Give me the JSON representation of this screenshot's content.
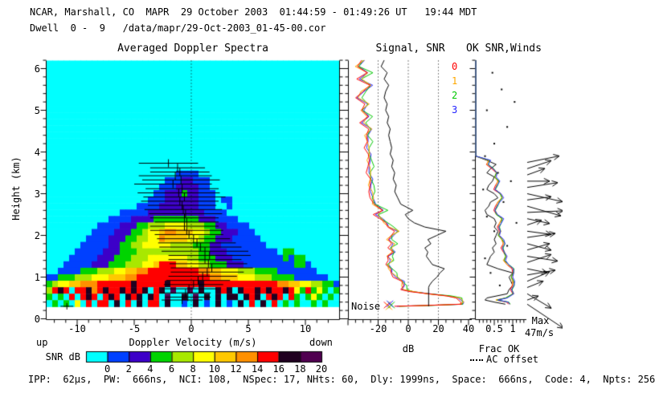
{
  "header": {
    "line1": "NCAR, Marshall, CO  MAPR  29 October 2003  01:44:59 - 01:49:26 UT   19:44 MDT",
    "line2": "Dwell  0 -  9   /data/mapr/29-Oct-2003_01-45-00.cor"
  },
  "footer": {
    "params": "IPP:  62µs,  PW:  666ns,  NCI: 108,  NSpec: 17, NHts: 60,  Dly: 1999ns,  Space:  666ns,  Code: 4,  Npts: 256"
  },
  "labels": {
    "height_axis": "Height (km)",
    "velocity_axis": "Doppler Velocity (m/s)",
    "up": "up",
    "down": "down",
    "snr_db": "SNR dB",
    "db": "dB",
    "frac_ok": "Frac OK",
    "ac_offset": "AC offset",
    "noise": "Noise",
    "max": "Max",
    "max_value": "47m/s"
  },
  "chart_data": [
    {
      "id": "spectra",
      "type": "heatmap",
      "title": "Averaged Doppler Spectra",
      "xlabel": "Doppler Velocity (m/s)",
      "ylabel": "Height (km)",
      "xlim": [
        -13,
        13
      ],
      "ylim": [
        0,
        6.2
      ],
      "x_ticks": [
        -10,
        -5,
        0,
        5,
        10
      ],
      "y_ticks": [
        0,
        1,
        2,
        3,
        4,
        5,
        6
      ],
      "x_left_note": "up",
      "x_right_note": "down",
      "zero_line_v": 0,
      "colorbar": {
        "label": "SNR dB",
        "tick_labels": [
          "0",
          "2",
          "4",
          "6",
          "8",
          "10",
          "12",
          "14",
          "16",
          "18",
          "20"
        ],
        "colors": [
          "#00ffff",
          "#0040ff",
          "#3c00c8",
          "#00d400",
          "#a8e800",
          "#ffff00",
          "#ffc800",
          "#ff9000",
          "#ff0000",
          "#200020",
          "#500050"
        ]
      },
      "grid": {
        "cols": 52,
        "rows": 40,
        "v_min": -13,
        "v_max": 13,
        "h_max": 6.2,
        "palette": {
          ".": "#00ffff",
          "1": "#0040ff",
          "2": "#3c00c8",
          "3": "#00d400",
          "4": "#a8e800",
          "5": "#ffff00",
          "6": "#ffc800",
          "7": "#ff9000",
          "8": "#ff0000",
          "9": "#200020",
          "a": "#500050"
        },
        "rows_data": [
          ".",
          ".",
          ".",
          ".",
          ".",
          ".",
          ".",
          ".",
          ".",
          ".",
          ".",
          ".",
          ".",
          ".",
          ".",
          ".",
          ".",
          ".......................1111",
          ".....................11122111",
          "....................111222211",
          "...................11222322111",
          "..................111222222111.11",
          "................11112222222111..1",
          ".............1111122222222221111",
          "...........11112222333333332221111",
          ".........111122233444555544433221111",
          "........11112223345567766655433222111",
          ".......1111222334455766665543322211111",
          "......111112233445555544443332211111111",
          ".....111112223334444444444433222111111111.33",
          "....111112223334445555555443332221111111113133",
          "...11111222333444556888665544333222111111111331",
          "..1111333444556677888888888776655544433331111111",
          "11333444555666778888888888888776665554443333111111",
          "3455667778888889888889888889888888888888877665544331",
          "4898.8897898898989.89.a..a.9..989.9889898898538353.3",
          "3.3.8.898.898.989.98.a..9.a.9.9.99.989.898.83.353.3.",
          ".3.3.5.8.88.9.8.9.88.9..1.9.1.9.1.9.8.9.8.3.3..3.3..",
          "",
          ""
        ]
      },
      "moment_lines": [
        [
          3.73,
          -2.0,
          2.6
        ],
        [
          3.62,
          -1.2,
          2.4
        ],
        [
          3.52,
          -1.0,
          2.6
        ],
        [
          3.43,
          -1.4,
          3.2
        ],
        [
          3.33,
          -0.9,
          3.4
        ],
        [
          3.23,
          -1.6,
          3.4
        ],
        [
          3.12,
          -0.8,
          3.2
        ],
        [
          3.02,
          -1.1,
          3.6
        ],
        [
          2.92,
          -0.6,
          3.6
        ],
        [
          2.82,
          -1.0,
          3.4
        ],
        [
          2.72,
          -0.8,
          3.0
        ],
        [
          2.62,
          -0.7,
          3.4
        ],
        [
          2.52,
          -0.5,
          3.2
        ],
        [
          2.42,
          -0.6,
          3.0
        ],
        [
          2.32,
          -0.4,
          2.8
        ],
        [
          2.22,
          -0.6,
          3.0
        ],
        [
          2.12,
          -0.4,
          3.2
        ],
        [
          2.02,
          -0.2,
          3.0
        ],
        [
          1.92,
          0.2,
          3.2
        ],
        [
          1.82,
          0.5,
          3.4
        ],
        [
          1.72,
          0.8,
          3.6
        ],
        [
          1.62,
          1.2,
          3.8
        ],
        [
          1.52,
          1.6,
          3.6
        ],
        [
          1.42,
          1.2,
          3.2
        ],
        [
          1.32,
          1.5,
          3.4
        ],
        [
          1.22,
          1.8,
          3.6
        ],
        [
          1.12,
          1.4,
          3.2
        ],
        [
          1.02,
          1.0,
          3.0
        ],
        [
          0.92,
          0.6,
          2.8
        ],
        [
          0.82,
          0.2,
          2.6
        ],
        [
          0.72,
          -0.2,
          2.4
        ],
        [
          0.62,
          -0.5,
          2.2
        ],
        [
          0.52,
          -0.3,
          2.0
        ],
        [
          0.45,
          -0.8,
          1.8
        ]
      ],
      "lone_cross": {
        "v": -10.9,
        "h": 0.3
      }
    },
    {
      "id": "signal_snr",
      "type": "line",
      "title": "Signal, SNR",
      "xlabel": "dB",
      "xlim": [
        -40,
        42
      ],
      "x_ticks": [
        -20,
        0,
        20,
        40
      ],
      "gridlines_db": [
        -20,
        0,
        20
      ],
      "legend": {
        "labels": [
          "0",
          "1",
          "2",
          "3"
        ],
        "colors": [
          "#ff0000",
          "#ffa800",
          "#00c800",
          "#2424ff"
        ]
      },
      "beam_offsets_db": [
        0,
        0.8,
        2.2,
        1.2
      ],
      "signal_profile": [
        [
          6.2,
          -16
        ],
        [
          6.05,
          -18
        ],
        [
          5.9,
          -14
        ],
        [
          5.75,
          -16
        ],
        [
          5.6,
          -13
        ],
        [
          5.45,
          -15
        ],
        [
          5.3,
          -16
        ],
        [
          5.15,
          -14
        ],
        [
          5.0,
          -15
        ],
        [
          4.85,
          -13
        ],
        [
          4.7,
          -14
        ],
        [
          4.55,
          -12
        ],
        [
          4.4,
          -13
        ],
        [
          4.25,
          -12
        ],
        [
          4.1,
          -11
        ],
        [
          3.95,
          -12
        ],
        [
          3.8,
          -10
        ],
        [
          3.65,
          -11
        ],
        [
          3.5,
          -9
        ],
        [
          3.35,
          -10
        ],
        [
          3.2,
          -8
        ],
        [
          3.05,
          -9
        ],
        [
          2.9,
          -7
        ],
        [
          2.75,
          -5
        ],
        [
          2.6,
          3
        ],
        [
          2.5,
          -2
        ],
        [
          2.4,
          0
        ],
        [
          2.3,
          4
        ],
        [
          2.2,
          11
        ],
        [
          2.1,
          25
        ],
        [
          2.0,
          19
        ],
        [
          1.9,
          13
        ],
        [
          1.8,
          15
        ],
        [
          1.7,
          11
        ],
        [
          1.6,
          13
        ],
        [
          1.5,
          12
        ],
        [
          1.4,
          14
        ],
        [
          1.3,
          16
        ],
        [
          1.2,
          24
        ],
        [
          1.1,
          21
        ],
        [
          1.0,
          19
        ],
        [
          0.9,
          16
        ],
        [
          0.8,
          14
        ],
        [
          0.75,
          13.5
        ],
        [
          0.3,
          13.5
        ]
      ],
      "snr_profile": [
        [
          6.2,
          -31
        ],
        [
          6.05,
          -35
        ],
        [
          5.9,
          -27
        ],
        [
          5.75,
          -33
        ],
        [
          5.6,
          -26
        ],
        [
          5.45,
          -31
        ],
        [
          5.3,
          -34
        ],
        [
          5.15,
          -28
        ],
        [
          5.0,
          -32
        ],
        [
          4.85,
          -27
        ],
        [
          4.7,
          -31
        ],
        [
          4.55,
          -26
        ],
        [
          4.4,
          -29
        ],
        [
          4.25,
          -27
        ],
        [
          4.1,
          -28
        ],
        [
          3.95,
          -27
        ],
        [
          3.8,
          -27
        ],
        [
          3.65,
          -26
        ],
        [
          3.5,
          -27
        ],
        [
          3.35,
          -26
        ],
        [
          3.2,
          -26
        ],
        [
          3.05,
          -25
        ],
        [
          2.9,
          -25
        ],
        [
          2.75,
          -24
        ],
        [
          2.6,
          -17
        ],
        [
          2.5,
          -22
        ],
        [
          2.4,
          -19
        ],
        [
          2.3,
          -16
        ],
        [
          2.2,
          -13
        ],
        [
          2.1,
          -8
        ],
        [
          2.0,
          -12
        ],
        [
          1.9,
          -14
        ],
        [
          1.8,
          -10
        ],
        [
          1.7,
          -13
        ],
        [
          1.6,
          -11
        ],
        [
          1.5,
          -14
        ],
        [
          1.4,
          -12
        ],
        [
          1.3,
          -15
        ],
        [
          1.2,
          -13
        ],
        [
          1.1,
          -11
        ],
        [
          1.0,
          -9
        ],
        [
          0.9,
          -5
        ],
        [
          0.8,
          -4
        ],
        [
          0.7,
          -4
        ],
        [
          0.65,
          2
        ],
        [
          0.6,
          12
        ],
        [
          0.55,
          25
        ],
        [
          0.5,
          33
        ],
        [
          0.4,
          35
        ],
        [
          0.35,
          34
        ],
        [
          0.32,
          12
        ],
        [
          0.3,
          -8
        ]
      ],
      "noise_label": "Noise",
      "noise_markers": [
        [
          -14,
          0.33,
          0
        ],
        [
          -12.8,
          0.29,
          1
        ],
        [
          -11.2,
          0.33,
          2
        ],
        [
          -12.2,
          0.36,
          3
        ]
      ]
    },
    {
      "id": "frac_ok",
      "type": "line",
      "title": "OK SNR,Winds",
      "xlabel": "Frac OK",
      "xlim": [
        0,
        1.37
      ],
      "x_ticks": [
        0.5,
        1
      ],
      "legend2": "AC offset",
      "frac_profiles": [
        [
          6.2,
          0,
          0
        ],
        [
          3.9,
          0,
          0
        ],
        [
          3.8,
          0.35,
          0.3
        ],
        [
          3.7,
          0.3,
          0.55
        ],
        [
          3.6,
          0.45,
          0.4
        ],
        [
          3.5,
          0.55,
          0.3
        ],
        [
          3.4,
          0.5,
          0.5
        ],
        [
          3.3,
          0.6,
          0.45
        ],
        [
          3.2,
          0.55,
          0.35
        ],
        [
          3.1,
          0.5,
          0.3
        ],
        [
          3.0,
          0.65,
          0.5
        ],
        [
          2.9,
          0.7,
          0.6
        ],
        [
          2.8,
          0.6,
          0.4
        ],
        [
          2.7,
          0.55,
          0.35
        ],
        [
          2.6,
          0.5,
          0.25
        ],
        [
          2.5,
          0.55,
          0.3
        ],
        [
          2.4,
          0.7,
          0.5
        ],
        [
          2.3,
          0.65,
          0.55
        ],
        [
          2.2,
          0.6,
          0.5
        ],
        [
          2.1,
          0.65,
          0.6
        ],
        [
          2.0,
          0.6,
          0.55
        ],
        [
          1.9,
          0.7,
          0.5
        ],
        [
          1.8,
          0.75,
          0.55
        ],
        [
          1.7,
          0.7,
          0.45
        ],
        [
          1.6,
          0.75,
          0.5
        ],
        [
          1.5,
          0.8,
          0.4
        ],
        [
          1.4,
          0.75,
          0.35
        ],
        [
          1.3,
          0.85,
          0.3
        ],
        [
          1.2,
          1.0,
          0.6
        ],
        [
          1.1,
          1.0,
          1.0
        ],
        [
          1.0,
          0.95,
          0.9
        ],
        [
          0.9,
          1.0,
          0.95
        ],
        [
          0.8,
          1.0,
          1.0
        ],
        [
          0.7,
          0.95,
          0.9
        ],
        [
          0.6,
          1.0,
          0.85
        ],
        [
          0.5,
          0.8,
          0.3
        ],
        [
          0.45,
          0.55,
          0.25
        ],
        [
          0.4,
          0.85,
          0.5
        ],
        [
          0.35,
          0.9,
          0.8
        ]
      ],
      "ac_dots": [
        [
          0.45,
          5.9
        ],
        [
          0.7,
          5.5
        ],
        [
          0.3,
          5.0
        ],
        [
          0.85,
          4.6
        ],
        [
          0.5,
          4.2
        ],
        [
          0.25,
          3.9
        ],
        [
          0.6,
          3.5
        ],
        [
          0.2,
          3.1
        ],
        [
          0.75,
          2.8
        ],
        [
          0.3,
          2.45
        ],
        [
          0.5,
          2.1
        ],
        [
          0.85,
          1.75
        ],
        [
          0.25,
          1.45
        ],
        [
          0.4,
          1.1
        ],
        [
          0.65,
          0.8
        ],
        [
          1.05,
          5.2
        ],
        [
          0.95,
          3.3
        ],
        [
          1.1,
          2.3
        ]
      ]
    },
    {
      "id": "winds",
      "type": "vector",
      "max_label": "Max",
      "max_value": "47m/s",
      "barbs": [
        [
          3.75,
          40,
          -8
        ],
        [
          3.6,
          30,
          -10
        ],
        [
          3.45,
          22,
          -8
        ],
        [
          3.3,
          28,
          0
        ],
        [
          3.15,
          38,
          -6
        ],
        [
          3.0,
          44,
          10
        ],
        [
          2.85,
          30,
          -4
        ],
        [
          2.7,
          42,
          12
        ],
        [
          2.55,
          45,
          -2
        ],
        [
          2.4,
          28,
          6
        ],
        [
          2.25,
          18,
          -6
        ],
        [
          2.1,
          30,
          4
        ],
        [
          1.95,
          35,
          -5
        ],
        [
          1.8,
          30,
          8
        ],
        [
          1.65,
          28,
          -8
        ],
        [
          1.5,
          38,
          6
        ],
        [
          1.35,
          30,
          -10
        ],
        [
          1.2,
          25,
          5
        ],
        [
          1.05,
          35,
          -6
        ],
        [
          0.9,
          28,
          -12
        ],
        [
          0.75,
          20,
          -8
        ],
        [
          0.6,
          30,
          18
        ],
        [
          0.45,
          14,
          -5
        ],
        [
          0.35,
          45,
          30
        ]
      ]
    }
  ]
}
